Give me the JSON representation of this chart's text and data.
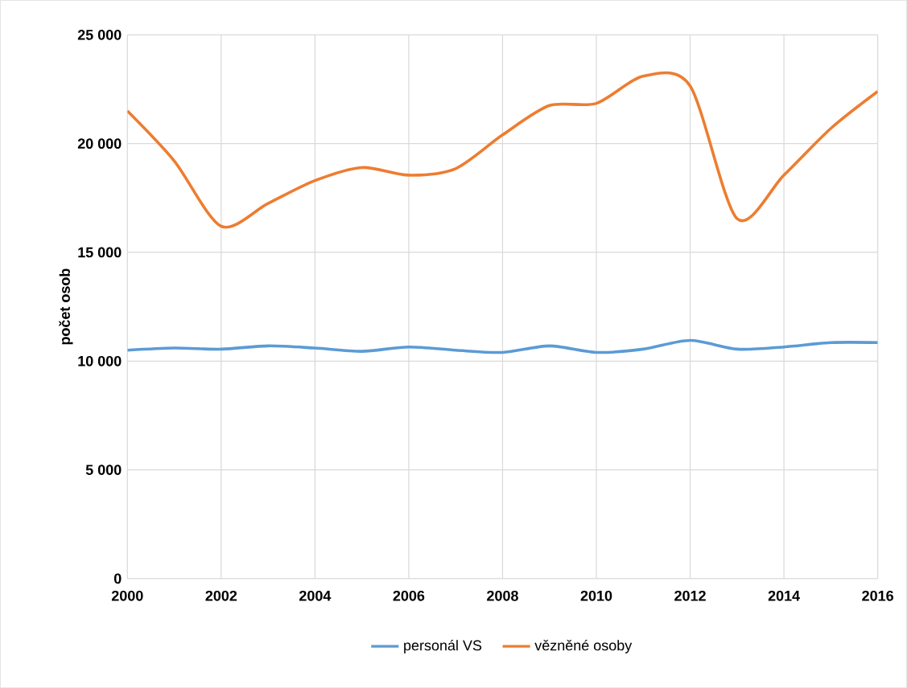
{
  "chart_data": {
    "type": "line",
    "ylabel": "počet osob",
    "x": [
      2000,
      2001,
      2002,
      2003,
      2004,
      2005,
      2006,
      2007,
      2008,
      2009,
      2010,
      2011,
      2012,
      2013,
      2014,
      2015,
      2016
    ],
    "series": [
      {
        "name": "personál VS",
        "color": "#5b9bd5",
        "values": [
          10500,
          10600,
          10550,
          10700,
          10600,
          10450,
          10650,
          10500,
          10400,
          10700,
          10400,
          10550,
          10950,
          10550,
          10650,
          10850,
          10850
        ]
      },
      {
        "name": "vězněné osoby",
        "color": "#ed7d31",
        "values": [
          21500,
          19200,
          16200,
          17250,
          18300,
          18900,
          18550,
          18850,
          20400,
          21750,
          21850,
          23100,
          22650,
          16550,
          18550,
          20700,
          22400
        ]
      }
    ],
    "xlim": [
      2000,
      2016
    ],
    "xticks": [
      2000,
      2002,
      2004,
      2006,
      2008,
      2010,
      2012,
      2014,
      2016
    ],
    "ylim": [
      0,
      25000
    ],
    "yticks": [
      {
        "value": 0,
        "label": "0"
      },
      {
        "value": 5000,
        "label": "5 000"
      },
      {
        "value": 10000,
        "label": "10 000"
      },
      {
        "value": 15000,
        "label": "15 000"
      },
      {
        "value": 20000,
        "label": "20 000"
      },
      {
        "value": 25000,
        "label": "25 000"
      }
    ],
    "grid": true,
    "legend": "bottom",
    "marker": "none",
    "line_style": "solid"
  }
}
